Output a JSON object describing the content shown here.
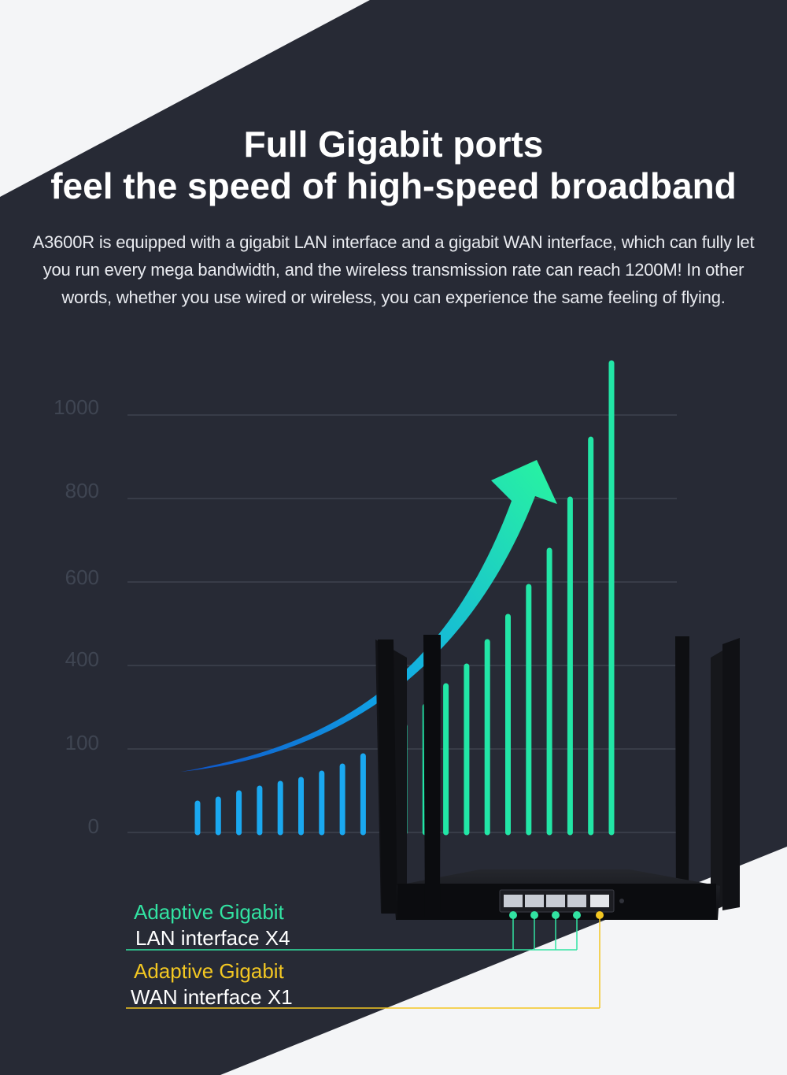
{
  "title_line1": "Full Gigabit ports",
  "title_line2": "feel the speed of high-speed broadband",
  "description": "A3600R is equipped with a gigabit LAN interface and a gigabit WAN interface, which can fully let you run every mega bandwidth, and the wireless transmission rate can reach 1200M! In other words, whether you use wired or wireless, you can experience the same feeling of flying.",
  "colors": {
    "background_dark": "#272a35",
    "background_light": "#f4f5f7",
    "bar_blue": "#1aa8f0",
    "bar_green": "#22e6a6",
    "lan_green": "#32e3a2",
    "wan_yellow": "#f3c722"
  },
  "chart_data": {
    "type": "bar",
    "y_tick_labels": [
      "1000",
      "800",
      "600",
      "400",
      "100",
      "0"
    ],
    "grid": true,
    "bar_count": 21,
    "trend": "increasing",
    "arrow": "curved-up-right"
  },
  "ports": {
    "lan": {
      "line1": "Adaptive Gigabit",
      "line2": "LAN interface X4",
      "count": 4
    },
    "wan": {
      "line1": "Adaptive Gigabit",
      "line2": "WAN interface X1",
      "count": 1
    }
  },
  "icons": [
    "router-icon",
    "antenna-icon",
    "ethernet-port-icon",
    "arrow-icon"
  ]
}
